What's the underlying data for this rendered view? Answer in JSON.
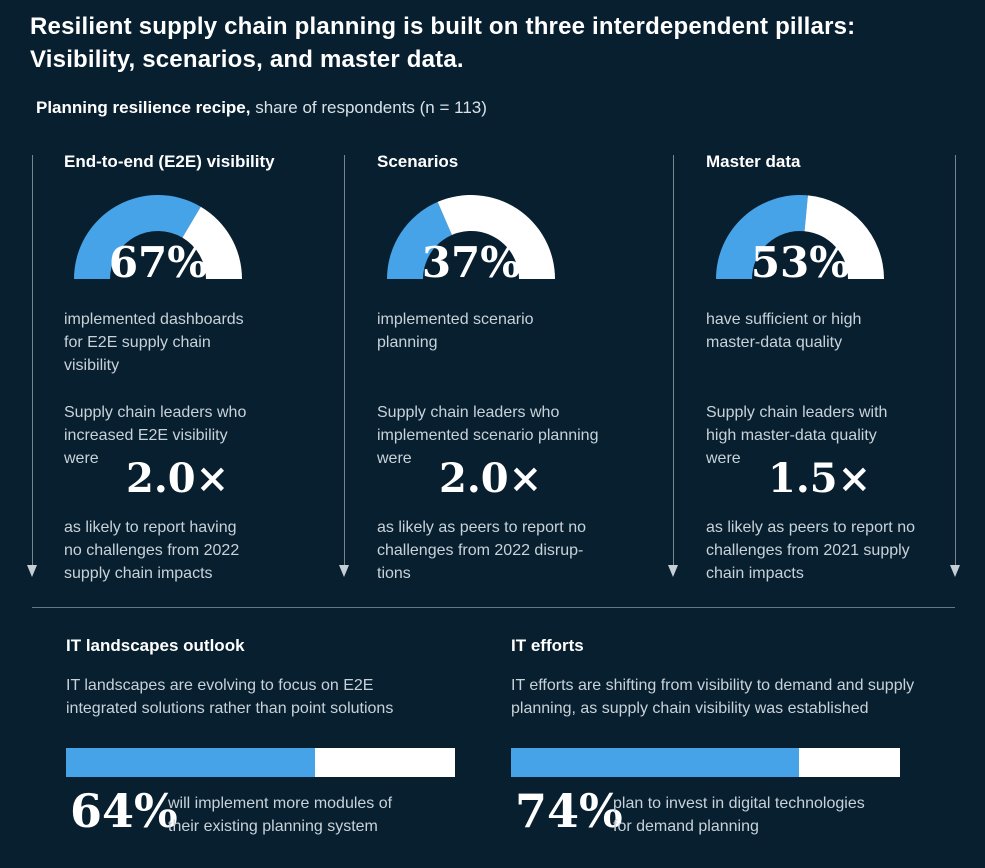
{
  "title": "Resilient supply chain planning is built on three interdependent pillars:\nVisibility, scenarios, and master data.",
  "subtitle": {
    "bold": "Planning resilience recipe,",
    "rest": " share of respondents (n = 113)"
  },
  "colors": {
    "background": "#081F2F",
    "accent_blue": "#46A3E8",
    "gauge_track": "#FFFFFF",
    "body_text": "#C8D2D9"
  },
  "pillars": [
    {
      "heading": "End-to-end (E2E) visibility",
      "gauge_pct": 67,
      "gauge_label": "67%",
      "gauge_desc": "implemented dashboards\nfor E2E supply chain\nvisibility",
      "stat_intro": "Supply chain leaders who\nincreased E2E visibility\nwere",
      "multiplier": "2.0×",
      "stat_outro": "as likely to report having\nno challenges from 2022\nsupply chain impacts"
    },
    {
      "heading": "Scenarios",
      "gauge_pct": 37,
      "gauge_label": "37%",
      "gauge_desc": "implemented scenario\nplanning",
      "stat_intro": "Supply chain leaders who\nimplemented scenario planning\nwere",
      "multiplier": "2.0×",
      "stat_outro": "as likely as peers to report no\nchallenges from 2022 disrup-\ntions"
    },
    {
      "heading": "Master data",
      "gauge_pct": 53,
      "gauge_label": "53%",
      "gauge_desc": "have sufficient or high\nmaster-data quality",
      "stat_intro": "Supply chain leaders with\nhigh master-data quality\nwere",
      "multiplier": "1.5×",
      "stat_outro": "as likely as peers to report no\nchallenges from 2021 supply\nchain impacts"
    }
  ],
  "bottom": [
    {
      "heading": "IT landscapes outlook",
      "description": "IT landscapes are evolving to focus on E2E\nintegrated solutions rather than point solutions",
      "bar_pct": 64,
      "stat": "64%",
      "stat_desc": "will implement more modules of\ntheir existing planning system"
    },
    {
      "heading": "IT efforts",
      "description": "IT efforts are shifting from visibility to demand and supply\nplanning, as supply chain visibility was established",
      "bar_pct": 74,
      "stat": "74%",
      "stat_desc": "plan to invest in digital technologies\nfor demand planning"
    }
  ],
  "chart_data": [
    {
      "type": "pie",
      "subtype": "half-donut-gauge",
      "title": "End-to-end (E2E) visibility",
      "value_pct": 67,
      "segments": [
        {
          "label": "implemented dashboards for E2E supply chain visibility",
          "value": 67,
          "color": "#46A3E8"
        },
        {
          "label": "remainder",
          "value": 33,
          "color": "#FFFFFF"
        }
      ],
      "annotation": "Supply chain leaders who increased E2E visibility were 2.0× as likely to report having no challenges from 2022 supply chain impacts"
    },
    {
      "type": "pie",
      "subtype": "half-donut-gauge",
      "title": "Scenarios",
      "value_pct": 37,
      "segments": [
        {
          "label": "implemented scenario planning",
          "value": 37,
          "color": "#46A3E8"
        },
        {
          "label": "remainder",
          "value": 63,
          "color": "#FFFFFF"
        }
      ],
      "annotation": "Supply chain leaders who implemented scenario planning were 2.0× as likely as peers to report no challenges from 2022 disruptions"
    },
    {
      "type": "pie",
      "subtype": "half-donut-gauge",
      "title": "Master data",
      "value_pct": 53,
      "segments": [
        {
          "label": "have sufficient or high master-data quality",
          "value": 53,
          "color": "#46A3E8"
        },
        {
          "label": "remainder",
          "value": 47,
          "color": "#FFFFFF"
        }
      ],
      "annotation": "Supply chain leaders with high master-data quality were 1.5× as likely as peers to report no challenges from 2021 supply chain impacts"
    },
    {
      "type": "bar",
      "orientation": "horizontal",
      "title": "IT landscapes outlook",
      "categories": [
        "will implement more modules of their existing planning system"
      ],
      "values": [
        64
      ],
      "xlim": [
        0,
        100
      ],
      "bar_color": "#46A3E8",
      "track_color": "#FFFFFF"
    },
    {
      "type": "bar",
      "orientation": "horizontal",
      "title": "IT efforts",
      "categories": [
        "plan to invest in digital technologies for demand planning"
      ],
      "values": [
        74
      ],
      "xlim": [
        0,
        100
      ],
      "bar_color": "#46A3E8",
      "track_color": "#FFFFFF"
    }
  ]
}
